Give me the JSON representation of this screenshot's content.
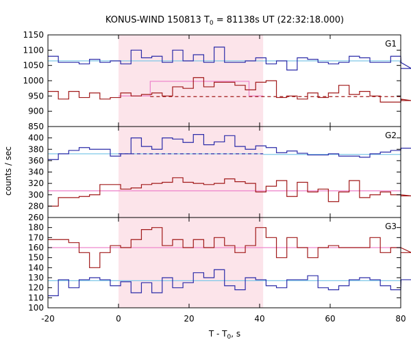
{
  "chart_data": {
    "type": "line",
    "title": "KONUS-WIND 150813 T0 = 81138s UT (22:32:18.000)",
    "title_parts": {
      "pre": "KONUS-WIND 150813 T",
      "sub": "0",
      "post": " = 81138s UT (22:32:18.000)"
    },
    "xlabel": "T - T0, s",
    "xlabel_parts": {
      "pre": "T - T",
      "sub": "0",
      "post": ", s"
    },
    "ylabel": "counts / sec",
    "xlim": [
      -20,
      80
    ],
    "x_ticks": [
      -20,
      0,
      20,
      40,
      60,
      80
    ],
    "highlight_interval": [
      0,
      41
    ],
    "bin_width": 2.944,
    "bin_start": -20,
    "colors": {
      "upper_series": "#2a2aa8",
      "lower_series": "#a01818",
      "background_fit": "#7ec8e8",
      "source_fit": "#ee88cc",
      "highlight": "#fce4ea"
    },
    "panels": [
      {
        "label": "G1",
        "ylim": [
          850,
          1150
        ],
        "y_ticks": [
          850,
          900,
          950,
          1000,
          1050,
          1100,
          1150
        ],
        "bg_levels": [
          {
            "x": [
              -20,
              80
            ],
            "y": 1065
          }
        ],
        "source_levels": [
          {
            "x": [
              0,
              9
            ],
            "y": 950
          },
          {
            "x": [
              9,
              37
            ],
            "y": 998
          },
          {
            "x": [
              37,
              41
            ],
            "y": 950
          }
        ],
        "dashed_levels": [
          {
            "x": [
              9,
              80
            ],
            "y": 948,
            "series": "lower"
          }
        ],
        "series": [
          {
            "id": "upper",
            "values": [
              1080,
              1060,
              1060,
              1055,
              1070,
              1060,
              1065,
              1055,
              1100,
              1075,
              1080,
              1060,
              1100,
              1065,
              1085,
              1060,
              1110,
              1060,
              1060,
              1065,
              1075,
              1055,
              1065,
              1035,
              1075,
              1070,
              1060,
              1055,
              1060,
              1080,
              1075,
              1060,
              1060,
              1080,
              1060,
              1040
            ]
          },
          {
            "id": "lower",
            "values": [
              965,
              940,
              965,
              945,
              960,
              940,
              945,
              960,
              950,
              955,
              960,
              950,
              980,
              975,
              1010,
              980,
              995,
              995,
              985,
              970,
              995,
              1000,
              945,
              950,
              940,
              960,
              945,
              960,
              985,
              955,
              965,
              950,
              930,
              930,
              940,
              935
            ]
          }
        ]
      },
      {
        "label": "G2",
        "ylim": [
          260,
          420
        ],
        "y_ticks": [
          260,
          280,
          300,
          320,
          340,
          360,
          380,
          400
        ],
        "bg_levels": [
          {
            "x": [
              -20,
              41
            ],
            "y": 372
          },
          {
            "x": [
              41,
              80
            ],
            "y": 371
          }
        ],
        "source_levels": [
          {
            "x": [
              -20,
              80
            ],
            "y": 307
          }
        ],
        "dashed_levels": [
          {
            "x": [
              0,
              41
            ],
            "y": 372,
            "series": "upper"
          }
        ],
        "series": [
          {
            "id": "upper",
            "values": [
              362,
              372,
              378,
              383,
              380,
              380,
              368,
              372,
              400,
              385,
              380,
              400,
              398,
              392,
              406,
              388,
              393,
              404,
              385,
              380,
              386,
              383,
              374,
              377,
              373,
              370,
              370,
              372,
              368,
              368,
              366,
              372,
              375,
              378,
              382,
              382
            ]
          },
          {
            "id": "lower",
            "values": [
              280,
              295,
              295,
              297,
              300,
              318,
              318,
              310,
              312,
              318,
              320,
              322,
              330,
              322,
              320,
              318,
              320,
              328,
              323,
              320,
              305,
              315,
              325,
              297,
              322,
              305,
              310,
              288,
              305,
              325,
              295,
              300,
              305,
              300,
              300,
              298
            ]
          }
        ]
      },
      {
        "label": "G3",
        "ylim": [
          100,
          190
        ],
        "y_ticks": [
          100,
          110,
          120,
          130,
          140,
          150,
          160,
          170,
          180
        ],
        "bg_levels": [
          {
            "x": [
              -20,
              80
            ],
            "y": 127
          }
        ],
        "source_levels": [
          {
            "x": [
              -20,
              80
            ],
            "y": 160
          }
        ],
        "dashed_levels": [],
        "series": [
          {
            "id": "upper",
            "values": [
              112,
              128,
              120,
              128,
              130,
              128,
              122,
              126,
              115,
              125,
              115,
              130,
              120,
              125,
              135,
              130,
              138,
              122,
              118,
              130,
              128,
              122,
              120,
              128,
              128,
              132,
              120,
              118,
              122,
              128,
              130,
              128,
              122,
              118,
              128,
              128
            ]
          },
          {
            "id": "lower",
            "values": [
              168,
              168,
              165,
              155,
              140,
              155,
              162,
              160,
              168,
              178,
              180,
              162,
              168,
              160,
              168,
              160,
              170,
              162,
              155,
              162,
              180,
              170,
              150,
              170,
              160,
              150,
              160,
              162,
              160,
              160,
              160,
              170,
              155,
              160,
              160,
              155
            ]
          }
        ]
      }
    ]
  }
}
